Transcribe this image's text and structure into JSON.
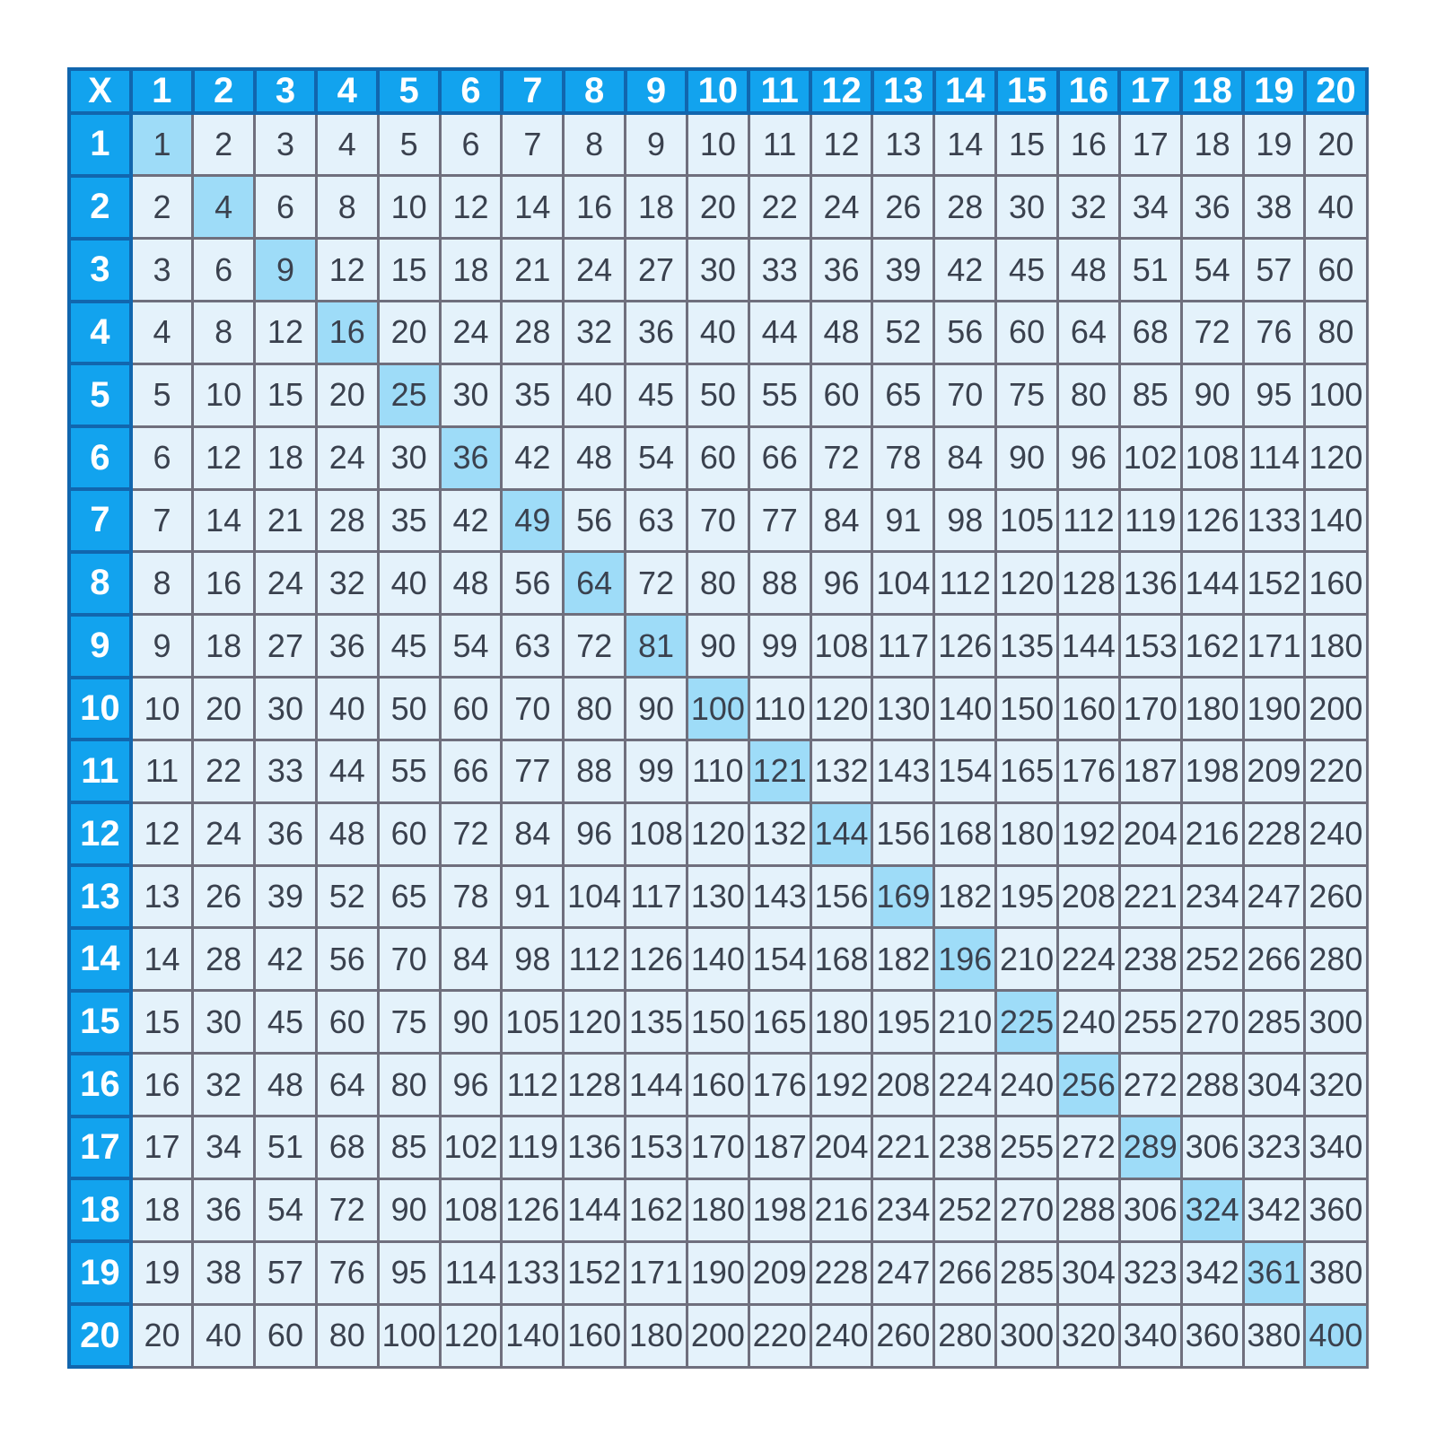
{
  "colors": {
    "header_bg": "#12a3ee",
    "header_text": "#ffffff",
    "header_border": "#1166ae",
    "cell_bg": "#e4f2fb",
    "cell_text": "#3a414e",
    "grid_border": "#6f6f7d",
    "diag_bg": "#9edcf8",
    "page_bg": "#ffffff"
  },
  "chart_data": {
    "type": "table",
    "corner_label": "X",
    "highlight_diagonal": true,
    "columns": [
      "1",
      "2",
      "3",
      "4",
      "5",
      "6",
      "7",
      "8",
      "9",
      "10",
      "11",
      "12",
      "13",
      "14",
      "15",
      "16",
      "17",
      "18",
      "19",
      "20"
    ],
    "row_labels": [
      "1",
      "2",
      "3",
      "4",
      "5",
      "6",
      "7",
      "8",
      "9",
      "10",
      "11",
      "12",
      "13",
      "14",
      "15",
      "16",
      "17",
      "18",
      "19",
      "20"
    ],
    "rows": [
      [
        1,
        2,
        3,
        4,
        5,
        6,
        7,
        8,
        9,
        10,
        11,
        12,
        13,
        14,
        15,
        16,
        17,
        18,
        19,
        20
      ],
      [
        2,
        4,
        6,
        8,
        10,
        12,
        14,
        16,
        18,
        20,
        22,
        24,
        26,
        28,
        30,
        32,
        34,
        36,
        38,
        40
      ],
      [
        3,
        6,
        9,
        12,
        15,
        18,
        21,
        24,
        27,
        30,
        33,
        36,
        39,
        42,
        45,
        48,
        51,
        54,
        57,
        60
      ],
      [
        4,
        8,
        12,
        16,
        20,
        24,
        28,
        32,
        36,
        40,
        44,
        48,
        52,
        56,
        60,
        64,
        68,
        72,
        76,
        80
      ],
      [
        5,
        10,
        15,
        20,
        25,
        30,
        35,
        40,
        45,
        50,
        55,
        60,
        65,
        70,
        75,
        80,
        85,
        90,
        95,
        100
      ],
      [
        6,
        12,
        18,
        24,
        30,
        36,
        42,
        48,
        54,
        60,
        66,
        72,
        78,
        84,
        90,
        96,
        102,
        108,
        114,
        120
      ],
      [
        7,
        14,
        21,
        28,
        35,
        42,
        49,
        56,
        63,
        70,
        77,
        84,
        91,
        98,
        105,
        112,
        119,
        126,
        133,
        140
      ],
      [
        8,
        16,
        24,
        32,
        40,
        48,
        56,
        64,
        72,
        80,
        88,
        96,
        104,
        112,
        120,
        128,
        136,
        144,
        152,
        160
      ],
      [
        9,
        18,
        27,
        36,
        45,
        54,
        63,
        72,
        81,
        90,
        99,
        108,
        117,
        126,
        135,
        144,
        153,
        162,
        171,
        180
      ],
      [
        10,
        20,
        30,
        40,
        50,
        60,
        70,
        80,
        90,
        100,
        110,
        120,
        130,
        140,
        150,
        160,
        170,
        180,
        190,
        200
      ],
      [
        11,
        22,
        33,
        44,
        55,
        66,
        77,
        88,
        99,
        110,
        121,
        132,
        143,
        154,
        165,
        176,
        187,
        198,
        209,
        220
      ],
      [
        12,
        24,
        36,
        48,
        60,
        72,
        84,
        96,
        108,
        120,
        132,
        144,
        156,
        168,
        180,
        192,
        204,
        216,
        228,
        240
      ],
      [
        13,
        26,
        39,
        52,
        65,
        78,
        91,
        104,
        117,
        130,
        143,
        156,
        169,
        182,
        195,
        208,
        221,
        234,
        247,
        260
      ],
      [
        14,
        28,
        42,
        56,
        70,
        84,
        98,
        112,
        126,
        140,
        154,
        168,
        182,
        196,
        210,
        224,
        238,
        252,
        266,
        280
      ],
      [
        15,
        30,
        45,
        60,
        75,
        90,
        105,
        120,
        135,
        150,
        165,
        180,
        195,
        210,
        225,
        240,
        255,
        270,
        285,
        300
      ],
      [
        16,
        32,
        48,
        64,
        80,
        96,
        112,
        128,
        144,
        160,
        176,
        192,
        208,
        224,
        240,
        256,
        272,
        288,
        304,
        320
      ],
      [
        17,
        34,
        51,
        68,
        85,
        102,
        119,
        136,
        153,
        170,
        187,
        204,
        221,
        238,
        255,
        272,
        289,
        306,
        323,
        340
      ],
      [
        18,
        36,
        54,
        72,
        90,
        108,
        126,
        144,
        162,
        180,
        198,
        216,
        234,
        252,
        270,
        288,
        306,
        324,
        342,
        360
      ],
      [
        19,
        38,
        57,
        76,
        95,
        114,
        133,
        152,
        171,
        190,
        209,
        228,
        247,
        266,
        285,
        304,
        323,
        342,
        361,
        380
      ],
      [
        20,
        40,
        60,
        80,
        100,
        120,
        140,
        160,
        180,
        200,
        220,
        240,
        260,
        280,
        300,
        320,
        340,
        360,
        380,
        400
      ]
    ]
  }
}
